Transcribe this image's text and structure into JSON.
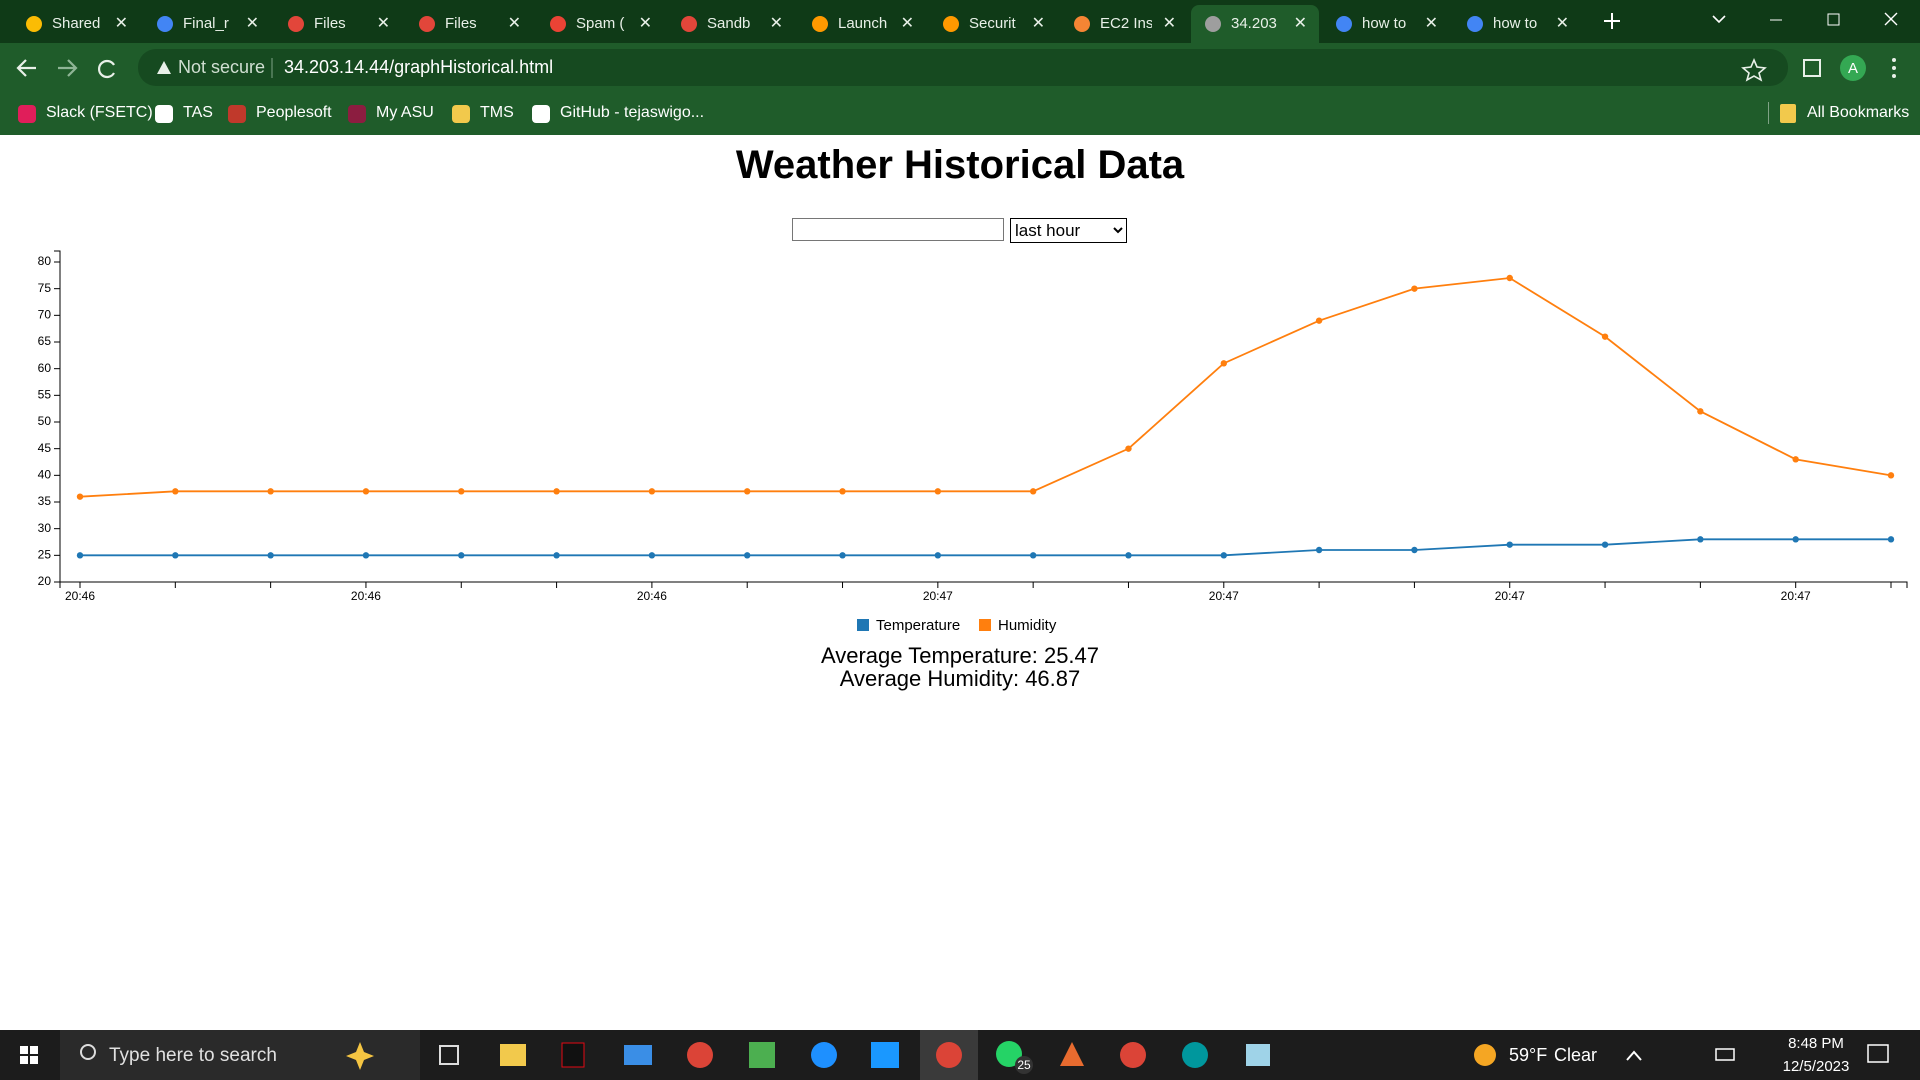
{
  "browser": {
    "tabs": [
      {
        "title": "Shared",
        "active": false
      },
      {
        "title": "Final_r",
        "active": false
      },
      {
        "title": "Files",
        "active": false
      },
      {
        "title": "Files",
        "active": false
      },
      {
        "title": "Spam (",
        "active": false
      },
      {
        "title": "Sandb",
        "active": false
      },
      {
        "title": "Launch",
        "active": false
      },
      {
        "title": "Securit",
        "active": false
      },
      {
        "title": "EC2 Ins",
        "active": false
      },
      {
        "title": "34.203",
        "active": true
      },
      {
        "title": "how to",
        "active": false
      },
      {
        "title": "how to",
        "active": false
      }
    ],
    "address": {
      "security": "Not secure",
      "url": "34.203.14.44/graphHistorical.html"
    },
    "profile": "A",
    "bookmarks": [
      "Slack (FSETC)",
      "TAS",
      "Peoplesoft",
      "My ASU",
      "TMS",
      "GitHub - tejaswigo..."
    ],
    "all_bookmarks": "All Bookmarks"
  },
  "page": {
    "title": "Weather Historical Data",
    "range_select": "last hour",
    "average_temperature": "Average Temperature: 25.47",
    "average_humidity": "Average Humidity: 46.87"
  },
  "chart_data": {
    "type": "line",
    "categories": [
      "20:46",
      null,
      null,
      "20:46",
      null,
      null,
      "20:46",
      null,
      null,
      "20:47",
      null,
      null,
      "20:47",
      null,
      null,
      "20:47",
      null,
      null,
      "20:47",
      null
    ],
    "series": [
      {
        "name": "Temperature",
        "color": "#1f77b4",
        "values": [
          25,
          25,
          25,
          25,
          25,
          25,
          25,
          25,
          25,
          25,
          25,
          25,
          25,
          26,
          26,
          27,
          27,
          28,
          28,
          28
        ]
      },
      {
        "name": "Humidity",
        "color": "#ff7f0e",
        "values": [
          36,
          37,
          37,
          37,
          37,
          37,
          37,
          37,
          37,
          37,
          37,
          45,
          61,
          69,
          75,
          77,
          66,
          52,
          43,
          40
        ]
      }
    ],
    "ylim": [
      20,
      80
    ],
    "yticks": [
      20,
      25,
      30,
      35,
      40,
      45,
      50,
      55,
      60,
      65,
      70,
      75,
      80
    ],
    "legend": "bottom"
  },
  "taskbar": {
    "search": "Type here to search",
    "weather_temp": "59°F",
    "weather_text": "Clear",
    "time": "8:48 PM",
    "date": "12/5/2023",
    "whatsapp_badge": "25"
  }
}
